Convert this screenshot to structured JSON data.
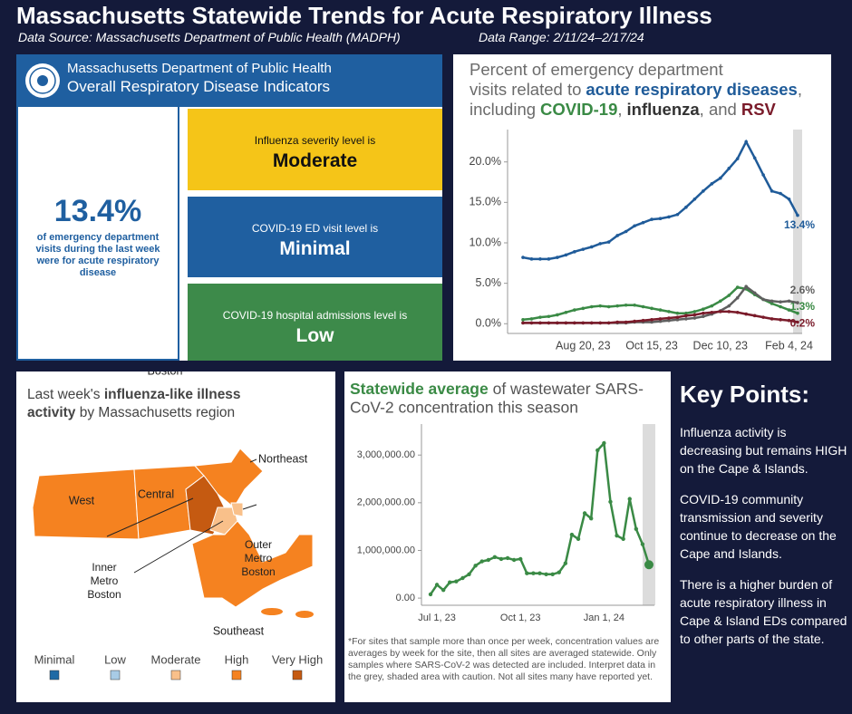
{
  "header": {
    "title": "Massachusetts Statewide Trends for Acute Respiratory Illness",
    "source": "Data Source: Massachusetts Department of Public Health (MADPH)",
    "range": "Data Range: 2/11/24–2/17/24"
  },
  "indicators": {
    "org": "Massachusetts Department of Public Health",
    "heading": "Overall Respiratory Disease Indicators",
    "big_value": "13.4%",
    "big_caption": "of emergency department visits during the last week were for acute respiratory disease",
    "items": [
      {
        "label": "Influenza severity level is",
        "level": "Moderate",
        "color": "#f5c518",
        "text_color": "#111111"
      },
      {
        "label": "COVID-19 ED visit level is",
        "level": "Minimal",
        "color": "#1f5fa0",
        "text_color": "#ffffff"
      },
      {
        "label": "COVID-19 hospital admissions level is",
        "level": "Low",
        "color": "#3d8a4a",
        "text_color": "#ffffff"
      }
    ]
  },
  "chart_data": [
    {
      "type": "line",
      "title_parts": [
        "Percent of emergency department",
        "visits related to",
        ",",
        "including",
        ",",
        ", and"
      ],
      "categories": [
        null,
        null,
        null,
        null,
        null,
        null,
        null,
        "Aug 20, 23",
        null,
        null,
        null,
        null,
        null,
        null,
        null,
        "Oct 15, 23",
        null,
        null,
        null,
        null,
        null,
        null,
        null,
        "Dec 10, 23",
        null,
        null,
        null,
        null,
        null,
        null,
        null,
        "Feb 4, 24",
        null
      ],
      "ylim": [
        -1.2,
        24
      ],
      "yticks": [
        {
          "value": 0,
          "label": "0.0%"
        },
        {
          "value": 5,
          "label": "5.0%"
        },
        {
          "value": 10,
          "label": "10.0%"
        },
        {
          "value": 15,
          "label": "15.0%"
        },
        {
          "value": 20,
          "label": "20.0%"
        }
      ],
      "series": [
        {
          "name": "acute respiratory diseases",
          "color": "#1f5b99",
          "values": [
            8.2,
            8.0,
            8.0,
            8.0,
            8.2,
            8.5,
            8.9,
            9.2,
            9.5,
            9.9,
            10.1,
            10.9,
            11.4,
            12.1,
            12.5,
            12.9,
            13.0,
            13.2,
            13.5,
            14.4,
            15.4,
            16.4,
            17.3,
            18.0,
            19.2,
            20.4,
            22.5,
            20.5,
            18.4,
            16.4,
            16.1,
            15.4,
            13.4
          ],
          "value_labels": [
            null,
            null,
            null,
            null,
            null,
            null,
            null,
            null,
            null,
            null,
            null,
            null,
            null,
            null,
            null,
            null,
            null,
            null,
            null,
            null,
            null,
            null,
            null,
            null,
            null,
            null,
            null,
            null,
            null,
            null,
            null,
            null,
            "13.4%"
          ]
        },
        {
          "name": "COVID-19",
          "color": "#3a8a45",
          "values": [
            0.5,
            0.6,
            0.8,
            0.9,
            1.1,
            1.4,
            1.7,
            1.9,
            2.1,
            2.2,
            2.1,
            2.2,
            2.3,
            2.3,
            2.1,
            1.9,
            1.7,
            1.5,
            1.3,
            1.3,
            1.5,
            1.8,
            2.2,
            2.8,
            3.5,
            4.5,
            4.3,
            3.6,
            3.0,
            2.5,
            2.1,
            1.7,
            1.3
          ],
          "value_labels": [
            null,
            null,
            null,
            null,
            null,
            null,
            null,
            null,
            null,
            null,
            null,
            null,
            null,
            null,
            null,
            null,
            null,
            null,
            null,
            null,
            null,
            null,
            null,
            null,
            null,
            null,
            null,
            null,
            null,
            null,
            null,
            null,
            "1.3%"
          ]
        },
        {
          "name": "influenza",
          "color": "#5f5f5f",
          "values": [
            0.1,
            0.1,
            0.1,
            0.1,
            0.1,
            0.1,
            0.1,
            0.1,
            0.1,
            0.1,
            0.1,
            0.1,
            0.1,
            0.2,
            0.2,
            0.2,
            0.3,
            0.4,
            0.5,
            0.6,
            0.7,
            0.9,
            1.2,
            1.6,
            2.2,
            3.2,
            4.6,
            3.8,
            3.0,
            2.8,
            2.7,
            2.8,
            2.6
          ],
          "value_labels": [
            null,
            null,
            null,
            null,
            null,
            null,
            null,
            null,
            null,
            null,
            null,
            null,
            null,
            null,
            null,
            null,
            null,
            null,
            null,
            null,
            null,
            null,
            null,
            null,
            null,
            null,
            null,
            null,
            null,
            null,
            null,
            null,
            "2.6%"
          ]
        },
        {
          "name": "RSV",
          "color": "#7a1b2a",
          "values": [
            0.1,
            0.1,
            0.1,
            0.1,
            0.1,
            0.1,
            0.1,
            0.1,
            0.1,
            0.1,
            0.1,
            0.2,
            0.2,
            0.3,
            0.4,
            0.5,
            0.6,
            0.7,
            0.8,
            1.0,
            1.1,
            1.3,
            1.4,
            1.5,
            1.5,
            1.4,
            1.2,
            1.0,
            0.8,
            0.6,
            0.5,
            0.4,
            0.2
          ],
          "value_labels": [
            null,
            null,
            null,
            null,
            null,
            null,
            null,
            null,
            null,
            null,
            null,
            null,
            null,
            null,
            null,
            null,
            null,
            null,
            null,
            null,
            null,
            null,
            null,
            null,
            null,
            null,
            null,
            null,
            null,
            null,
            null,
            null,
            "0.2%"
          ]
        }
      ]
    },
    {
      "type": "line",
      "title_parts": [
        "Statewide average",
        " of wastewater SARS-",
        "CoV-2 concentration this season"
      ],
      "categories": [
        null,
        "Jul 1, 23",
        null,
        null,
        null,
        null,
        null,
        null,
        null,
        null,
        null,
        null,
        null,
        null,
        "Oct 1, 23",
        null,
        null,
        null,
        null,
        null,
        null,
        null,
        null,
        null,
        null,
        null,
        null,
        "Jan 1, 24",
        null,
        null,
        null,
        null,
        null,
        null,
        null
      ],
      "values": [
        80000,
        280000,
        170000,
        330000,
        350000,
        420000,
        500000,
        680000,
        770000,
        800000,
        860000,
        820000,
        840000,
        800000,
        820000,
        520000,
        520000,
        520000,
        500000,
        500000,
        540000,
        730000,
        1330000,
        1240000,
        1780000,
        1670000,
        3100000,
        3250000,
        2020000,
        1310000,
        1240000,
        2080000,
        1450000,
        1130000,
        700000
      ],
      "color": "#3a8a45",
      "ylim": [
        -150000,
        3650000
      ],
      "yticks": [
        {
          "value": 0,
          "label": "0.00"
        },
        {
          "value": 1000000,
          "label": "1,000,000.00"
        },
        {
          "value": 2000000,
          "label": "2,000,000.00"
        },
        {
          "value": 3000000,
          "label": "3,000,000.00"
        }
      ],
      "footnote": "*For sites that sample more than once per week, concentration values are averages by week for the site, then all sites are averaged statewide. Only samples where SARS-CoV-2 was detected are included. Interpret data in the grey, shaded area with caution. Not all sites many have reported yet."
    }
  ],
  "map": {
    "title_parts": [
      "Last week's ",
      "influenza-like illness",
      "activity",
      " by Massachusetts region"
    ],
    "regions": [
      {
        "label": "West",
        "color": "#f58220"
      },
      {
        "label": "Central",
        "color": "#f58220"
      },
      {
        "label": "Northeast",
        "color": "#f58220"
      },
      {
        "label": "Outer Metro Boston",
        "color": "#c55a11"
      },
      {
        "label": "Inner Metro Boston",
        "color": "#f9c08a"
      },
      {
        "label": "Boston",
        "color": "#f9c08a"
      },
      {
        "label": "Southeast",
        "color": "#f58220"
      }
    ],
    "legend": [
      {
        "label": "Minimal",
        "color": "#1f6aa5"
      },
      {
        "label": "Low",
        "color": "#a8cbe6"
      },
      {
        "label": "Moderate",
        "color": "#f9c08a"
      },
      {
        "label": "High",
        "color": "#f58220"
      },
      {
        "label": "Very High",
        "color": "#c55a11"
      }
    ]
  },
  "key_points": {
    "heading": "Key Points:",
    "items": [
      "Influenza activity is decreasing but remains HIGH on the Cape & Islands.",
      "COVID-19 community transmission and severity continue to decrease on the Cape and Islands.",
      "There is a higher burden of acute respiratory illness in Cape & Island EDs compared to other parts of the state."
    ]
  }
}
